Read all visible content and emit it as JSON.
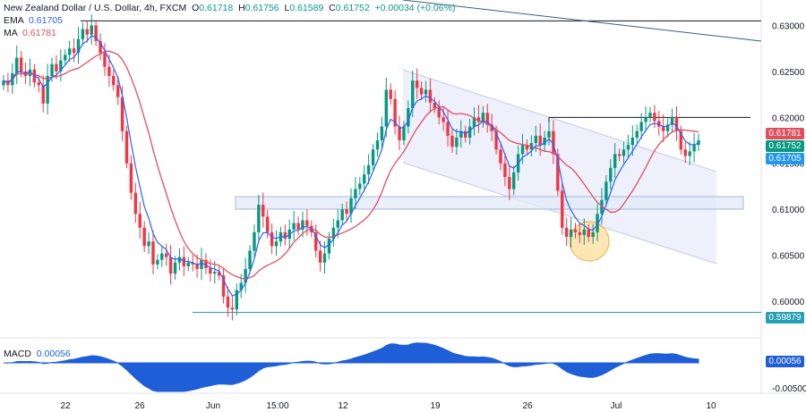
{
  "header": {
    "title": "New Zealand Dollar / U.S. Dollar, 4h, FXCM",
    "o_label": "O",
    "o": "0.61718",
    "h_label": "H",
    "h": "0.61756",
    "l_label": "L",
    "l": "0.61589",
    "c_label": "C",
    "c": "0.61752",
    "change": "+0.00034 (+0.06%)",
    "ema_label": "EMA",
    "ema_value": "0.61705",
    "ma_label": "MA",
    "ma_value": "0.61781"
  },
  "macd_label": {
    "name": "MACD",
    "value": "0.00056"
  },
  "price_tags": [
    {
      "text": "0.61781",
      "value": 0.61781,
      "color": "#e04f5f"
    },
    {
      "text": "0.61752",
      "value": 0.61752,
      "color": "#089981"
    },
    {
      "text": "0.61705",
      "value": 0.61705,
      "color": "#2196f3"
    },
    {
      "text": "0.59879",
      "value": 0.59879,
      "color": "#26a0b4"
    }
  ],
  "macd_tag": {
    "text": "0.00056",
    "color": "#1e5fd8"
  },
  "colors": {
    "up": "#089981",
    "down": "#f23645",
    "ema": "#2962ff",
    "ma": "#e04f5f",
    "macd": "#1e5fd8",
    "channel": "#eef0fb"
  },
  "chart_data": {
    "type": "candlestick",
    "price_axis": {
      "ticks": [
        "0.63000",
        "0.62500",
        "0.62000",
        "0.61500",
        "0.61000",
        "0.60500",
        "0.60000"
      ],
      "values": [
        0.63,
        0.625,
        0.62,
        0.615,
        0.61,
        0.605,
        0.6
      ],
      "range": [
        0.5966,
        0.6316
      ]
    },
    "macd_axis": {
      "ticks": [
        "-0.00500"
      ],
      "values": [
        -0.005
      ],
      "range": [
        -0.0062,
        0.0028
      ]
    },
    "x_labels": [
      "22",
      "26",
      "Jun",
      "15:00",
      "12",
      "19",
      "26",
      "Jul",
      "10"
    ],
    "candles_close": [
      0.624,
      0.6235,
      0.6248,
      0.6265,
      0.625,
      0.6245,
      0.6252,
      0.6238,
      0.6235,
      0.6215,
      0.6245,
      0.6258,
      0.625,
      0.6262,
      0.6268,
      0.6275,
      0.627,
      0.6285,
      0.6296,
      0.629,
      0.63,
      0.6283,
      0.627,
      0.6255,
      0.6245,
      0.6235,
      0.6222,
      0.6185,
      0.615,
      0.6118,
      0.6095,
      0.608,
      0.606,
      0.6065,
      0.604,
      0.6045,
      0.6052,
      0.6048,
      0.603,
      0.6042,
      0.6048,
      0.6038,
      0.6042,
      0.604,
      0.6035,
      0.6045,
      0.6036,
      0.603,
      0.6032,
      0.6028,
      0.6005,
      0.5993,
      0.5991,
      0.6012,
      0.602,
      0.6035,
      0.6055,
      0.6075,
      0.6105,
      0.6092,
      0.6075,
      0.606,
      0.6065,
      0.6075,
      0.6068,
      0.6078,
      0.6085,
      0.6078,
      0.6088,
      0.6082,
      0.6075,
      0.6055,
      0.6042,
      0.6052,
      0.6068,
      0.608,
      0.6088,
      0.61,
      0.6095,
      0.6112,
      0.6122,
      0.6128,
      0.6138,
      0.6148,
      0.6165,
      0.6175,
      0.619,
      0.623,
      0.622,
      0.619,
      0.6175,
      0.619,
      0.621,
      0.624,
      0.6232,
      0.6225,
      0.623,
      0.6216,
      0.621,
      0.62,
      0.6195,
      0.618,
      0.6168,
      0.6178,
      0.6185,
      0.6178,
      0.619,
      0.62,
      0.6195,
      0.6205,
      0.6192,
      0.6185,
      0.6165,
      0.615,
      0.6135,
      0.6122,
      0.614,
      0.616,
      0.617,
      0.6165,
      0.6172,
      0.618,
      0.617,
      0.6178,
      0.6185,
      0.616,
      0.612,
      0.608,
      0.607,
      0.6078,
      0.6075,
      0.6072,
      0.6078,
      0.607,
      0.6075,
      0.6095,
      0.611,
      0.613,
      0.6145,
      0.616,
      0.6158,
      0.6165,
      0.617,
      0.6178,
      0.6185,
      0.6195,
      0.62,
      0.6205,
      0.6196,
      0.619,
      0.6185,
      0.6192,
      0.62,
      0.6185,
      0.6165,
      0.6158,
      0.6163,
      0.617,
      0.6175
    ],
    "ema_last": 0.61705,
    "ma_last": 0.61781,
    "levels": [
      0.6305,
      0.62,
      0.59879
    ],
    "macd_last": 0.00056
  }
}
